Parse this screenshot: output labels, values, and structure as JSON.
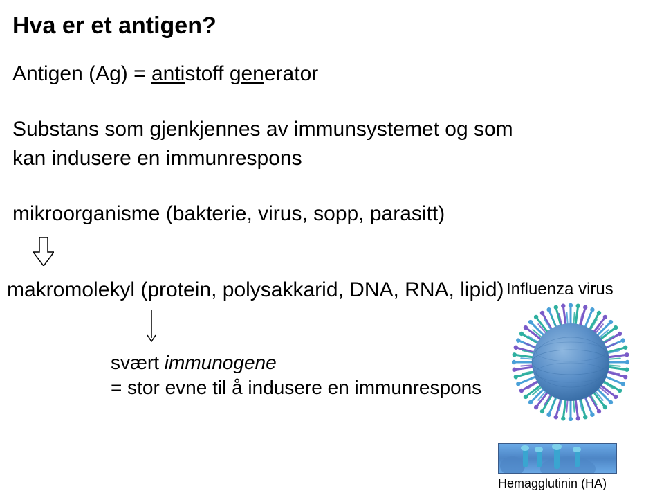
{
  "title": "Hva er et antigen?",
  "definition": {
    "prefix": "Antigen (Ag) = ",
    "part1_underlined": "anti",
    "part1_rest": "stoff ",
    "part2_underlined": "gen",
    "part2_rest": "erator"
  },
  "body": {
    "line1": "Substans som gjenkjennes av immunsystemet og som",
    "line2": "kan indusere en immunrespons",
    "line3": "mikroorganisme (bakterie, virus, sopp, parasitt)"
  },
  "makromolekyl": "makromolekyl (protein, polysakkarid, DNA, RNA, lipid)",
  "immunogene": {
    "line1_prefix": "svært ",
    "line1_italic": "immunogene",
    "line2": "= stor evne til å indusere en immunrespons"
  },
  "influenza_label": "Influenza virus",
  "ha_label": "Hemagglutinin (HA)",
  "colors": {
    "text": "#000000",
    "virus_body": "#5a8fc8",
    "virus_body_dark": "#3a6fa8",
    "spike_blue": "#4aa0d8",
    "spike_teal": "#2fb0a0",
    "spike_purple": "#7a5bc8",
    "ha_bg_light": "#6aa9e6",
    "ha_bg_dark": "#4d85c5"
  },
  "fontsizes": {
    "title": 34,
    "definition": 30,
    "body": 30,
    "immunogene": 28,
    "influenza": 24,
    "ha_label": 18
  }
}
